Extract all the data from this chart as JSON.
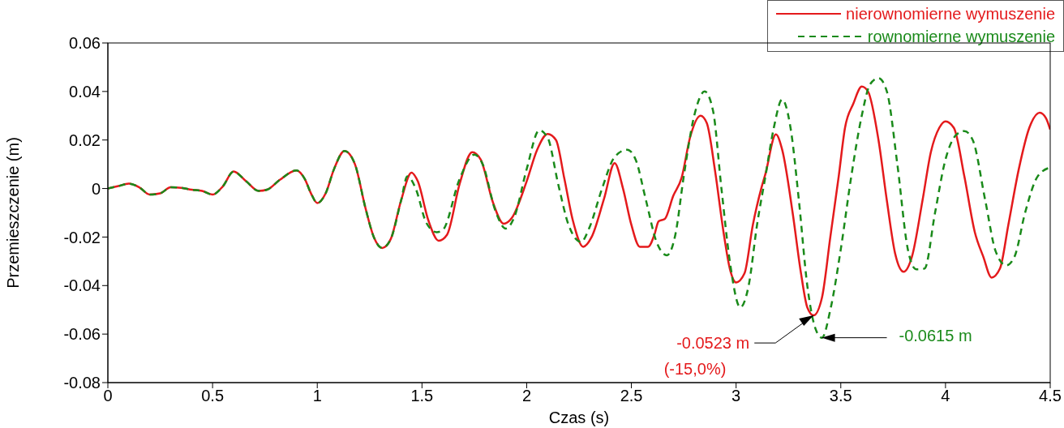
{
  "chart_data": {
    "type": "line",
    "xlabel": "Czas (s)",
    "ylabel": "Przemieszczenie (m)",
    "xlim": [
      0,
      4.5
    ],
    "xticks": [
      0,
      0.5,
      1,
      1.5,
      2,
      2.5,
      3,
      3.5,
      4,
      4.5
    ],
    "ylim": [
      -0.08,
      0.06
    ],
    "yticks": [
      -0.08,
      -0.06,
      -0.04,
      -0.02,
      0,
      0.02,
      0.04,
      0.06
    ],
    "legend": "top right",
    "grid": false,
    "series": [
      {
        "name": "nierownomierne wymuszenie",
        "color": "#e41a1c",
        "line_style": "solid",
        "x": [
          0,
          0.05,
          0.1,
          0.15,
          0.2,
          0.25,
          0.3,
          0.35,
          0.4,
          0.45,
          0.5,
          0.55,
          0.6,
          0.66,
          0.72,
          0.76,
          0.82,
          0.9,
          0.94,
          0.97,
          1.0,
          1.04,
          1.08,
          1.13,
          1.18,
          1.23,
          1.27,
          1.31,
          1.35,
          1.4,
          1.45,
          1.48,
          1.53,
          1.58,
          1.62,
          1.68,
          1.74,
          1.78,
          1.84,
          1.89,
          1.93,
          2.0,
          2.05,
          2.1,
          2.14,
          2.18,
          2.22,
          2.27,
          2.31,
          2.37,
          2.42,
          2.46,
          2.5,
          2.54,
          2.58,
          2.61,
          2.63,
          2.66,
          2.7,
          2.74,
          2.78,
          2.83,
          2.86,
          2.9,
          2.94,
          2.97,
          3.0,
          3.04,
          3.08,
          3.12,
          3.14,
          3.19,
          3.22,
          3.27,
          3.31,
          3.34,
          3.37,
          3.41,
          3.45,
          3.49,
          3.52,
          3.56,
          3.6,
          3.63,
          3.68,
          3.72,
          3.76,
          3.8,
          3.84,
          3.89,
          3.93,
          3.97,
          4.0,
          4.04,
          4.09,
          4.14,
          4.18,
          4.22,
          4.26,
          4.3,
          4.35,
          4.4,
          4.45,
          4.48,
          4.5
        ],
        "values": [
          0,
          0.001,
          0.002,
          0.0005,
          -0.0025,
          -0.002,
          0.0005,
          0.0003,
          -0.0005,
          -0.001,
          -0.0025,
          0.001,
          0.007,
          0.003,
          -0.001,
          -0.0005,
          0.0035,
          0.0075,
          0.004,
          -0.002,
          -0.006,
          -0.002,
          0.008,
          0.0155,
          0.01,
          -0.008,
          -0.02,
          -0.0245,
          -0.021,
          -0.005,
          0.0065,
          0.003,
          -0.013,
          -0.0215,
          -0.019,
          0.002,
          0.015,
          0.012,
          -0.006,
          -0.0145,
          -0.012,
          0.003,
          0.016,
          0.0225,
          0.02,
          0.004,
          -0.013,
          -0.024,
          -0.02,
          -0.004,
          0.0105,
          0.0,
          -0.015,
          -0.024,
          -0.024,
          -0.019,
          -0.0135,
          -0.0125,
          -0.003,
          0.0045,
          0.021,
          0.03,
          0.027,
          0.007,
          -0.018,
          -0.033,
          -0.0387,
          -0.035,
          -0.015,
          0.0,
          0.006,
          0.0223,
          0.016,
          -0.01,
          -0.035,
          -0.049,
          -0.0523,
          -0.045,
          -0.02,
          0.005,
          0.025,
          0.035,
          0.042,
          0.04,
          0.02,
          -0.005,
          -0.027,
          -0.0343,
          -0.028,
          -0.005,
          0.015,
          0.025,
          0.0277,
          0.025,
          0.005,
          -0.018,
          -0.028,
          -0.0367,
          -0.033,
          -0.015,
          0.008,
          0.025,
          0.0313,
          0.029,
          0.0243
        ]
      },
      {
        "name": "rownomierne wymuszenie",
        "color": "#1a8a1a",
        "line_style": "dashed",
        "x": [
          0,
          0.05,
          0.1,
          0.15,
          0.2,
          0.25,
          0.3,
          0.35,
          0.4,
          0.45,
          0.5,
          0.55,
          0.6,
          0.66,
          0.72,
          0.76,
          0.82,
          0.9,
          0.94,
          0.97,
          1.0,
          1.04,
          1.08,
          1.13,
          1.18,
          1.23,
          1.27,
          1.31,
          1.35,
          1.4,
          1.43,
          1.47,
          1.52,
          1.57,
          1.6,
          1.68,
          1.75,
          1.79,
          1.85,
          1.9,
          1.94,
          2.0,
          2.06,
          2.1,
          2.15,
          2.2,
          2.26,
          2.3,
          2.36,
          2.42,
          2.48,
          2.52,
          2.57,
          2.62,
          2.67,
          2.71,
          2.75,
          2.8,
          2.85,
          2.89,
          2.93,
          2.97,
          3.02,
          3.06,
          3.1,
          3.14,
          3.18,
          3.22,
          3.26,
          3.3,
          3.34,
          3.38,
          3.41,
          3.45,
          3.5,
          3.55,
          3.6,
          3.64,
          3.68,
          3.72,
          3.77,
          3.82,
          3.86,
          3.9,
          3.95,
          4.0,
          4.05,
          4.09,
          4.13,
          4.19,
          4.24,
          4.29,
          4.33,
          4.38,
          4.44,
          4.5
        ],
        "values": [
          0,
          0.001,
          0.002,
          0.0005,
          -0.0025,
          -0.002,
          0.0005,
          0.0003,
          -0.0005,
          -0.001,
          -0.0025,
          0.001,
          0.007,
          0.003,
          -0.001,
          -0.0005,
          0.0035,
          0.0075,
          0.004,
          -0.002,
          -0.006,
          -0.002,
          0.008,
          0.0155,
          0.01,
          -0.008,
          -0.02,
          -0.0245,
          -0.021,
          -0.005,
          0.005,
          0.0,
          -0.014,
          -0.018,
          -0.017,
          0.004,
          0.014,
          0.01,
          -0.009,
          -0.0165,
          -0.012,
          0.008,
          0.024,
          0.021,
          0.002,
          -0.015,
          -0.022,
          -0.016,
          0.0,
          0.013,
          0.016,
          0.012,
          -0.005,
          -0.022,
          -0.0275,
          -0.019,
          0.005,
          0.03,
          0.04,
          0.032,
          0.0,
          -0.03,
          -0.049,
          -0.04,
          -0.015,
          0.005,
          0.025,
          0.0367,
          0.025,
          -0.005,
          -0.04,
          -0.058,
          -0.0615,
          -0.05,
          -0.025,
          0.005,
          0.03,
          0.043,
          0.0455,
          0.04,
          0.01,
          -0.025,
          -0.0333,
          -0.033,
          -0.01,
          0.012,
          0.022,
          0.0237,
          0.02,
          -0.005,
          -0.026,
          -0.0317,
          -0.028,
          -0.01,
          0.005,
          0.0087
        ]
      }
    ],
    "annotations": [
      {
        "text": "-0.0523 m",
        "x": 3.37,
        "y": -0.0523
      },
      "(-15,0%)",
      {
        "text": "-0.0615 m",
        "x": 3.41,
        "y": -0.0615
      }
    ]
  }
}
